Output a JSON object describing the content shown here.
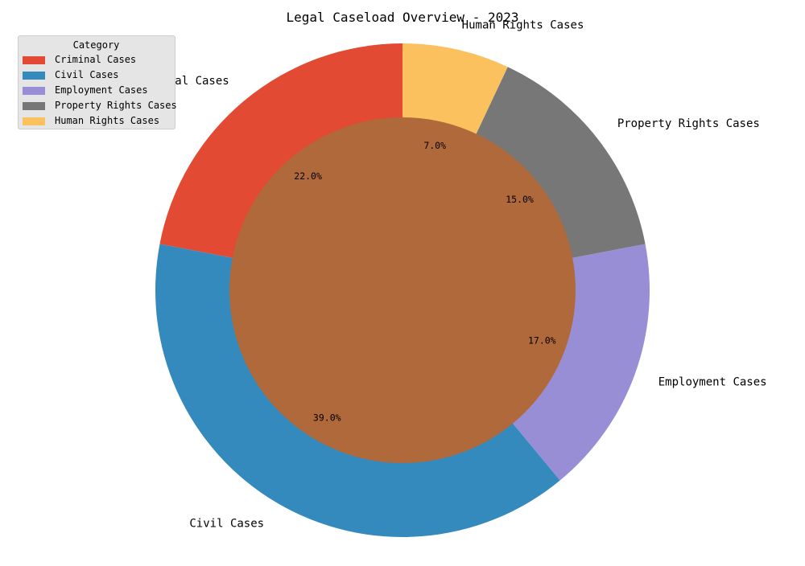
{
  "chart_data": {
    "type": "pie",
    "title": "Legal Caseload Overview - 2023",
    "categories": [
      "Criminal Cases",
      "Civil Cases",
      "Employment Cases",
      "Property Rights Cases",
      "Human Rights Cases"
    ],
    "values": [
      22,
      39,
      17,
      15,
      7
    ],
    "percent_labels": [
      "22.0%",
      "39.0%",
      "17.0%",
      "15.0%",
      "7.0%"
    ],
    "colors": [
      "#e24a33",
      "#348abd",
      "#988ed5",
      "#777777",
      "#fbc15e"
    ],
    "center_color": "#b0693b",
    "start_angle_deg": 90,
    "direction": "counterclockwise",
    "style": "donut",
    "legend": {
      "title": "Category",
      "placement": "upper-left"
    }
  }
}
